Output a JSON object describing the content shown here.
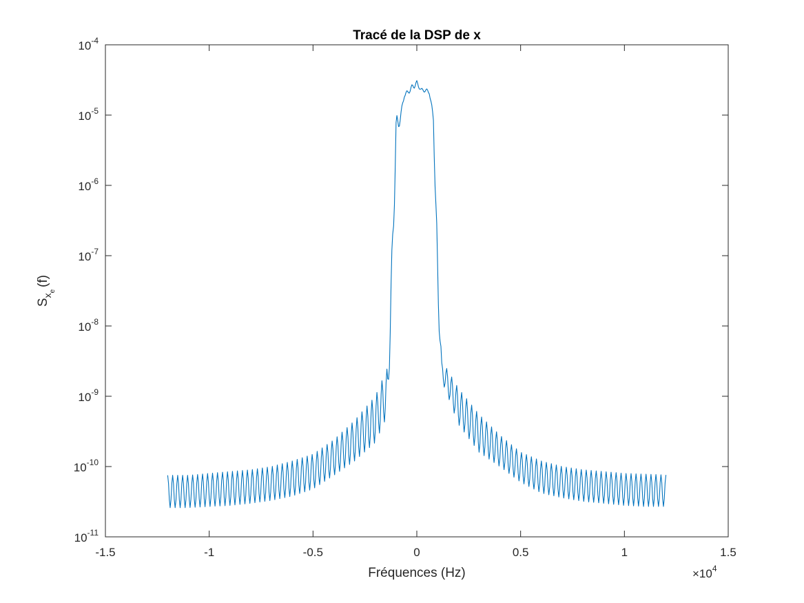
{
  "chart_data": {
    "type": "line",
    "title": "Tracé de la DSP de x",
    "xlabel": "Fréquences (Hz)",
    "ylabel": {
      "main": "S",
      "sub": "x",
      "subsub": "e",
      "suffix": "(f)"
    },
    "x_multiplier": {
      "prefix": "×10",
      "exponent": "4"
    },
    "xlim": [
      -15000,
      15000
    ],
    "ylim": [
      1e-11,
      0.0001
    ],
    "yscale": "log",
    "grid": false,
    "box": true,
    "xticks": [
      {
        "value": -15000,
        "label": "-1.5"
      },
      {
        "value": -10000,
        "label": "-1"
      },
      {
        "value": -5000,
        "label": "-0.5"
      },
      {
        "value": 0,
        "label": "0"
      },
      {
        "value": 5000,
        "label": "0.5"
      },
      {
        "value": 10000,
        "label": "1"
      },
      {
        "value": 15000,
        "label": "1.5"
      }
    ],
    "yticks": [
      {
        "value": 1e-11,
        "base": "10",
        "exp": "-11"
      },
      {
        "value": 1e-10,
        "base": "10",
        "exp": "-10"
      },
      {
        "value": 1e-09,
        "base": "10",
        "exp": "-9"
      },
      {
        "value": 1e-08,
        "base": "10",
        "exp": "-8"
      },
      {
        "value": 1e-07,
        "base": "10",
        "exp": "-7"
      },
      {
        "value": 1e-06,
        "base": "10",
        "exp": "-6"
      },
      {
        "value": 1e-05,
        "base": "10",
        "exp": "-5"
      },
      {
        "value": 0.0001,
        "base": "10",
        "exp": "-4"
      }
    ],
    "series": [
      {
        "color": "#0072BD",
        "envelope": {
          "x": [
            -12000,
            -11000,
            -10000,
            -9000,
            -8000,
            -7000,
            -6000,
            -5000,
            -4000,
            -3000,
            -2000,
            -1400,
            -1200,
            -1000,
            -800,
            -600,
            -400,
            -200,
            0,
            200,
            400,
            600,
            800,
            1000,
            1200,
            1400,
            2000,
            3000,
            4000,
            5000,
            6000,
            7000,
            8000,
            9000,
            10000,
            11000,
            12000
          ],
          "upper": [
            7.5e-11,
            7.5e-11,
            8e-11,
            8.5e-11,
            9e-11,
            1e-10,
            1.2e-10,
            1.5e-10,
            2.4e-10,
            4.5e-10,
            1e-09,
            2.6e-09,
            1.2e-07,
            9.8e-06,
            1e-05,
            2.1e-05,
            2.3e-05,
            2.8e-05,
            3.1e-05,
            2.4e-05,
            2.4e-05,
            2.3e-05,
            1e-05,
            1.2e-07,
            3e-09,
            2.6e-09,
            1.3e-09,
            5.5e-10,
            2.8e-10,
            1.6e-10,
            1.2e-10,
            1e-10,
            9e-11,
            8.5e-11,
            8e-11,
            7.8e-11,
            7.6e-11
          ],
          "lower": [
            2.6e-11,
            2.6e-11,
            2.7e-11,
            2.8e-11,
            3e-11,
            3.3e-11,
            3.8e-11,
            4.8e-11,
            7.5e-11,
            1.2e-10,
            2.2e-10,
            5.5e-10,
            2.5e-08,
            4e-06,
            8e-06,
            1.8e-05,
            2e-05,
            2.3e-05,
            2.6e-05,
            2.2e-05,
            2.1e-05,
            2e-05,
            8e-06,
            2.5e-08,
            1.6e-09,
            1.2e-09,
            4e-10,
            1.6e-10,
            1e-10,
            6e-11,
            4.2e-11,
            3.6e-11,
            3.2e-11,
            3e-11,
            2.8e-11,
            2.7e-11,
            2.7e-11
          ]
        },
        "oscillation_period": 240
      }
    ]
  }
}
